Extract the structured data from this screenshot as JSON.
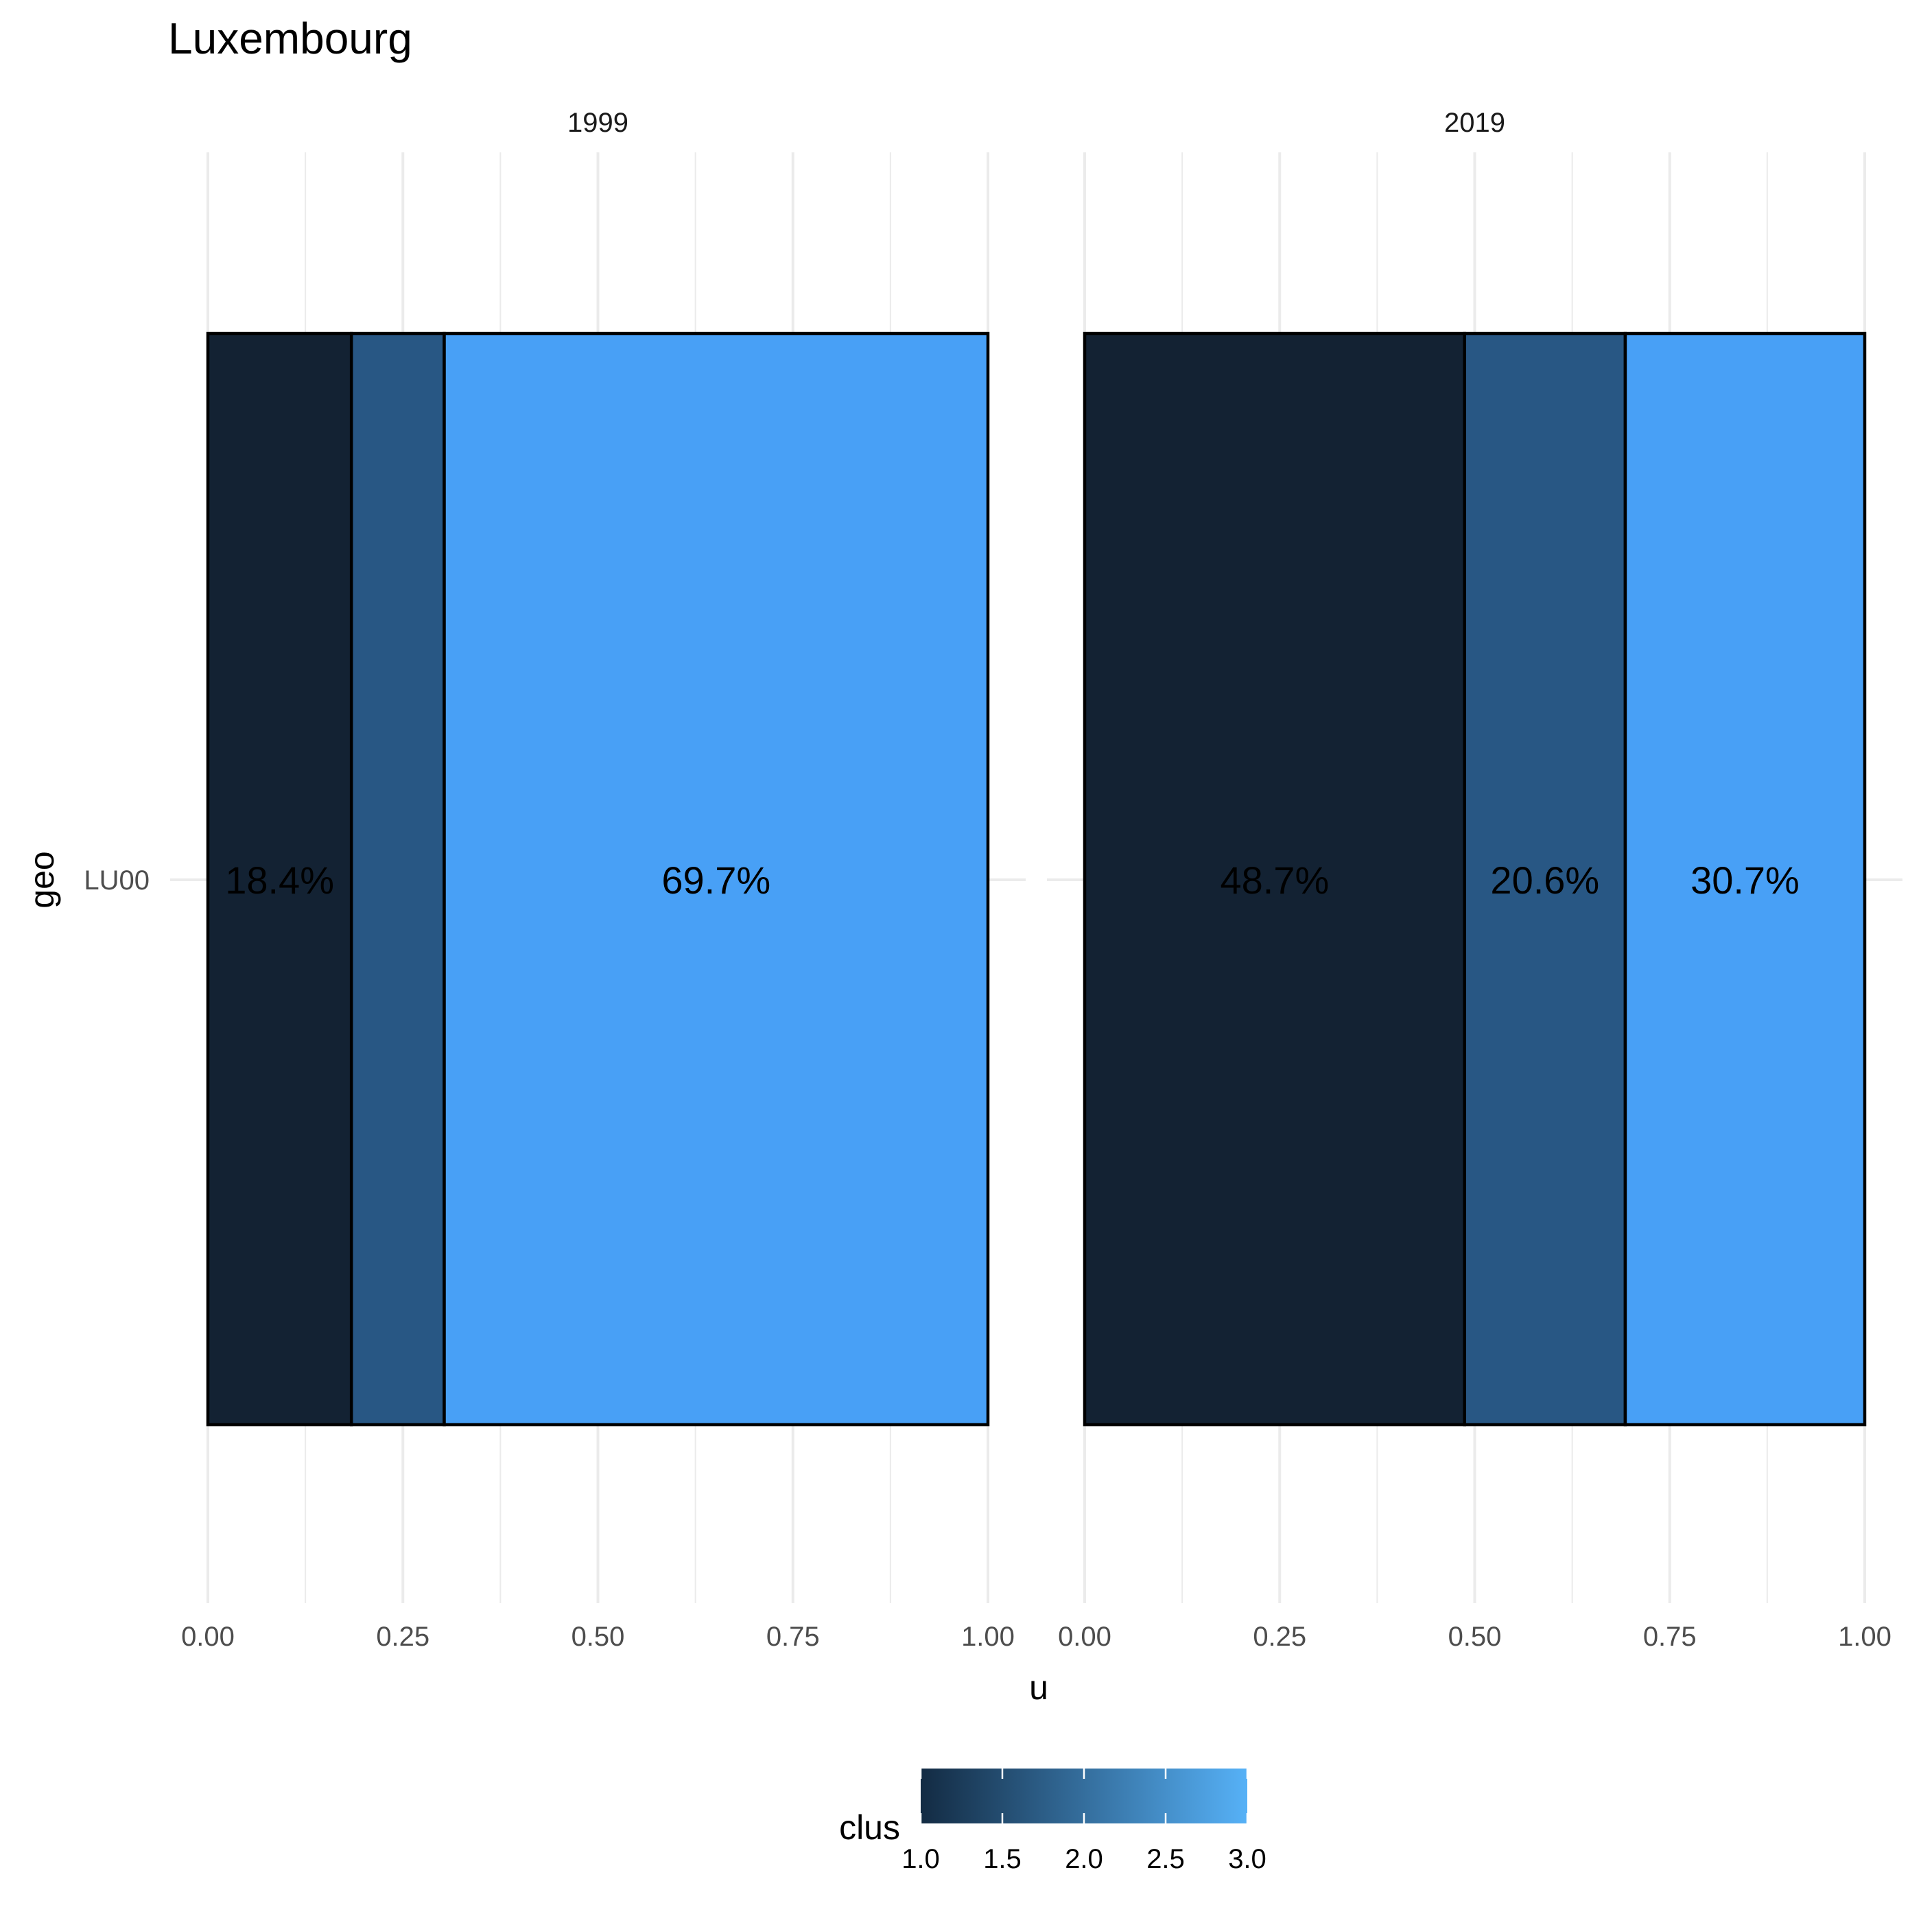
{
  "chart_data": {
    "type": "bar",
    "orientation": "horizontal",
    "stacked": true,
    "title": "Luxembourg",
    "xlabel": "u",
    "ylabel": "geo",
    "xlim": [
      0,
      1
    ],
    "x_ticks": [
      "0.00",
      "0.25",
      "0.50",
      "0.75",
      "1.00"
    ],
    "categories": [
      "LU00"
    ],
    "grid": true,
    "facets": [
      {
        "label": "1999",
        "segments": [
          {
            "clus": 1,
            "value": 0.184,
            "label": "18.4%"
          },
          {
            "clus": 2,
            "value": 0.119,
            "label": ""
          },
          {
            "clus": 3,
            "value": 0.697,
            "label": "69.7%"
          }
        ]
      },
      {
        "label": "2019",
        "segments": [
          {
            "clus": 1,
            "value": 0.487,
            "label": "48.7%"
          },
          {
            "clus": 2,
            "value": 0.206,
            "label": "20.6%"
          },
          {
            "clus": 3,
            "value": 0.307,
            "label": "30.7%"
          }
        ]
      }
    ],
    "legend": {
      "title": "clus",
      "position": "bottom",
      "type": "colorbar",
      "range": [
        1,
        3
      ],
      "ticks": [
        "1.0",
        "1.5",
        "2.0",
        "2.5",
        "3.0"
      ],
      "color_low": "#132B43",
      "color_high": "#56B1F7"
    },
    "colors": {
      "1": "#132233",
      "2": "#285784",
      "3": "#48a0f6"
    }
  }
}
